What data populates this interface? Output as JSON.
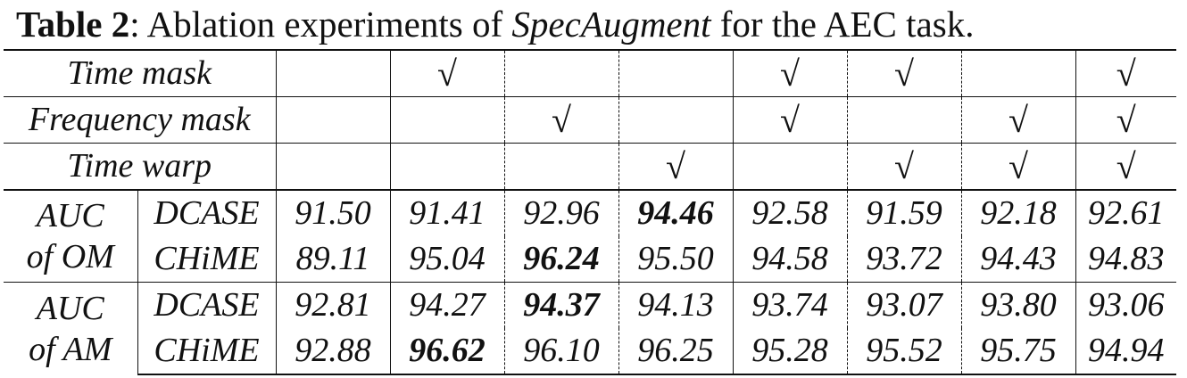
{
  "caption": {
    "label": "Table 2",
    "text_before": ": Ablation experiments of ",
    "emph": "SpecAugment",
    "text_after": " for the AEC task."
  },
  "table": {
    "header_rows": [
      {
        "label": "Time mask",
        "cells": [
          "",
          "√",
          "",
          "",
          "√",
          "√",
          "",
          "√"
        ]
      },
      {
        "label": "Frequency mask",
        "cells": [
          "",
          "",
          "√",
          "",
          "√",
          "",
          "√",
          "√"
        ]
      },
      {
        "label": "Time warp",
        "cells": [
          "",
          "",
          "",
          "√",
          "",
          "√",
          "√",
          "√"
        ]
      }
    ],
    "groups": [
      {
        "label_line1": "AUC",
        "label_line2": "of OM",
        "rows": [
          {
            "dataset": "DCASE",
            "values": [
              "91.50",
              "91.41",
              "92.96",
              "94.46",
              "92.58",
              "91.59",
              "92.18",
              "92.61"
            ],
            "best_index": 3
          },
          {
            "dataset": "CHiME",
            "values": [
              "89.11",
              "95.04",
              "96.24",
              "95.50",
              "94.58",
              "93.72",
              "94.43",
              "94.83"
            ],
            "best_index": 2
          }
        ]
      },
      {
        "label_line1": "AUC",
        "label_line2": "of AM",
        "rows": [
          {
            "dataset": "DCASE",
            "values": [
              "92.81",
              "94.27",
              "94.37",
              "94.13",
              "93.74",
              "93.07",
              "93.80",
              "93.06"
            ],
            "best_index": 2
          },
          {
            "dataset": "CHiME",
            "values": [
              "92.88",
              "96.62",
              "96.10",
              "96.25",
              "95.28",
              "95.52",
              "95.75",
              "94.94"
            ],
            "best_index": 1
          }
        ]
      }
    ]
  }
}
